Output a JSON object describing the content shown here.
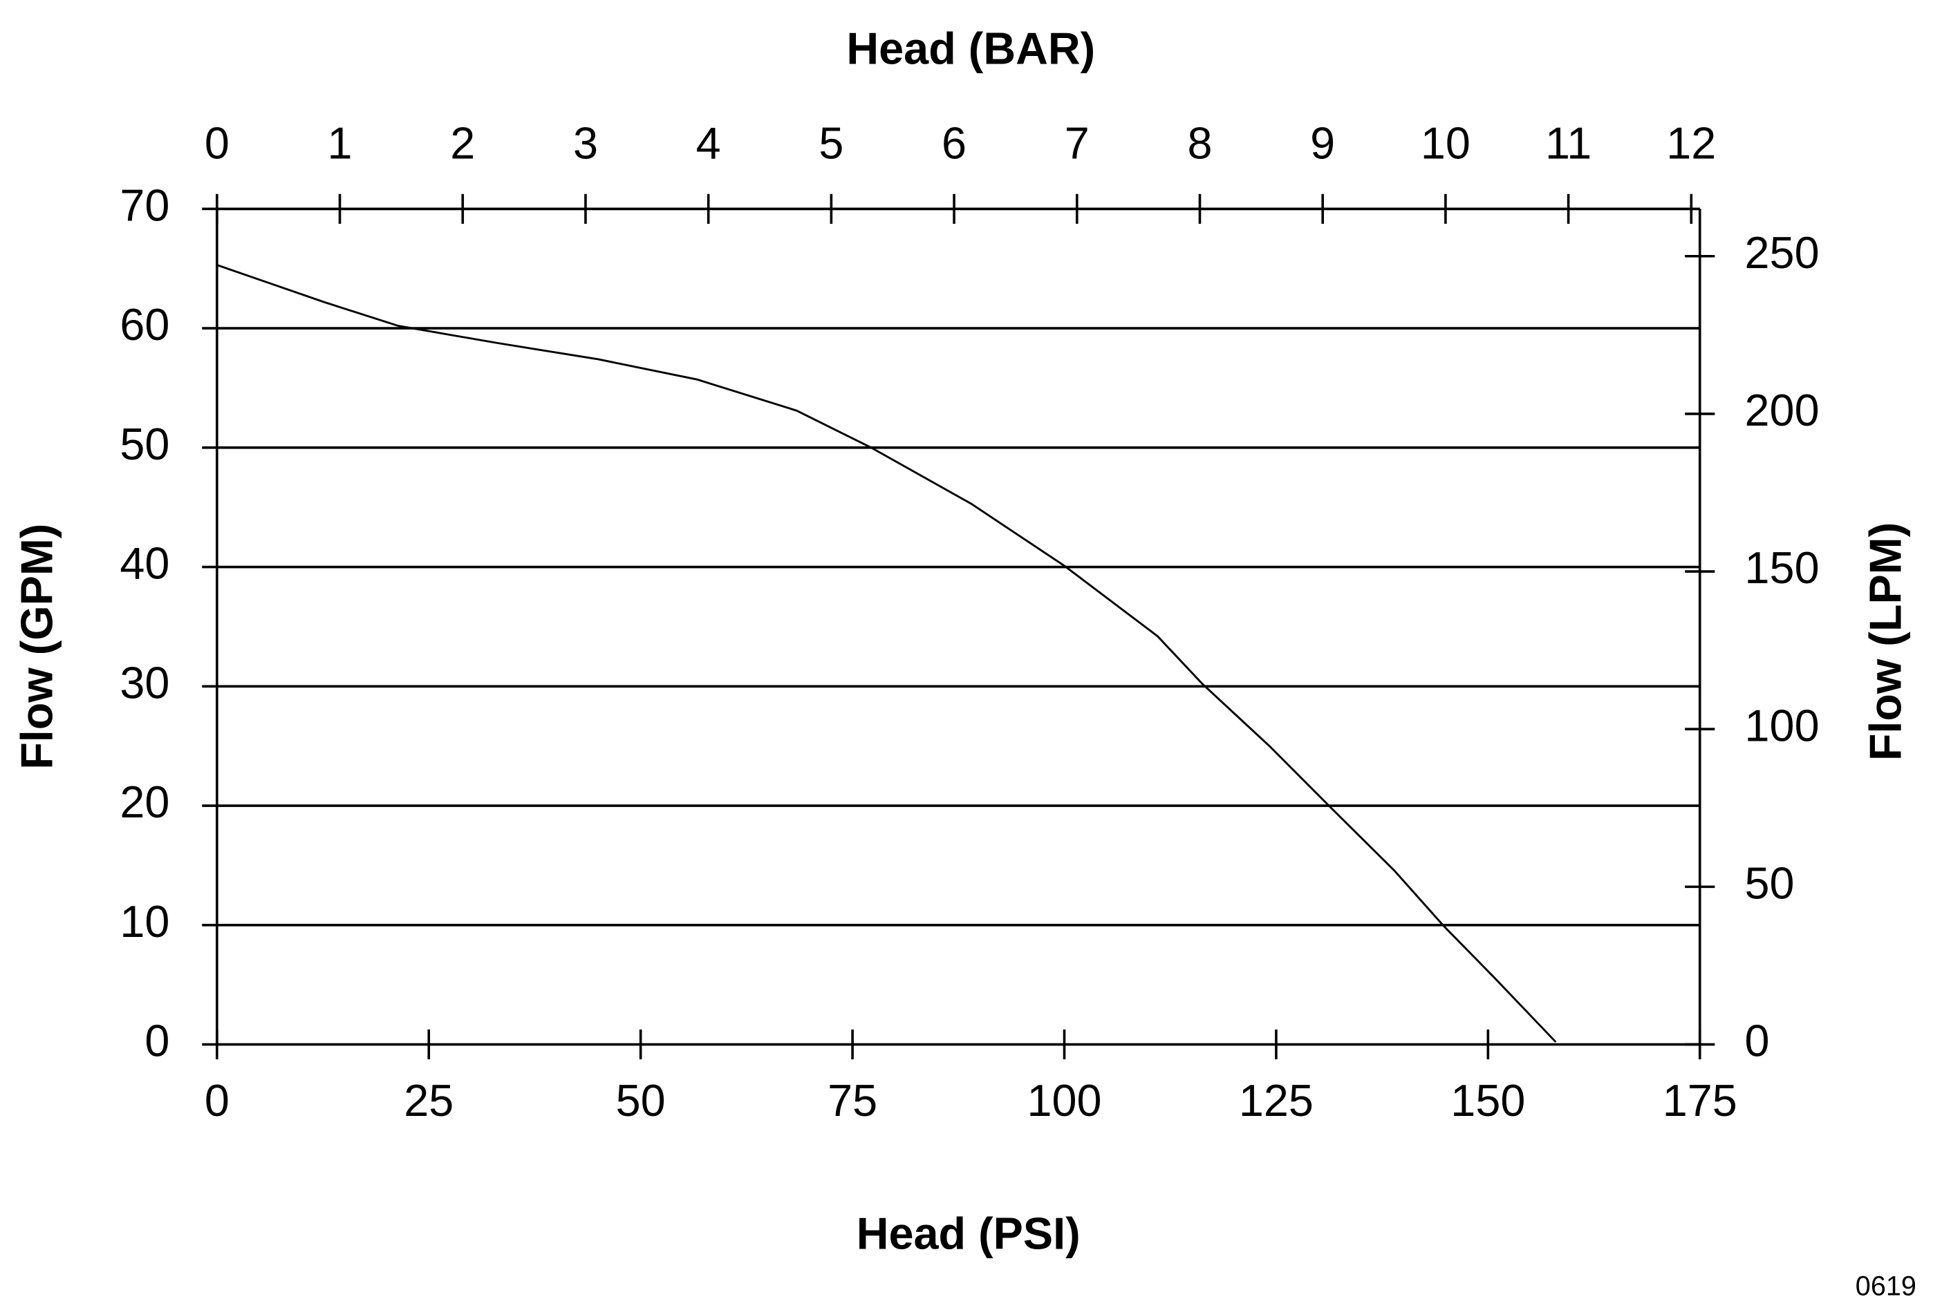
{
  "chart_data": {
    "type": "line",
    "title": "Head (BAR)",
    "x_label": "Head (PSI)",
    "y_label": "Flow (GPM)",
    "y2_label": "Flow (LPM)",
    "note": "0619",
    "x": [
      0,
      12.6,
      21.4,
      33.2,
      45,
      56.7,
      68.4,
      77.2,
      89,
      100,
      111,
      116.3,
      124.2,
      131.5,
      138.9,
      144.8,
      150.6,
      158
    ],
    "series": [
      {
        "name": "Flow",
        "color": "#000000",
        "values": [
          65.3,
          62.2,
          60.2,
          58.75,
          57.4,
          55.7,
          53.1,
          50,
          45.3,
          40.1,
          34.2,
          30.2,
          25,
          19.8,
          14.6,
          9.9,
          5.7,
          0.2
        ]
      }
    ],
    "xlim": [
      0,
      175
    ],
    "xticks": [
      0,
      25,
      50,
      75,
      100,
      125,
      150,
      175
    ],
    "x2lim": [
      0,
      12.07
    ],
    "x2ticks": [
      0,
      1,
      2,
      3,
      4,
      5,
      6,
      7,
      8,
      9,
      10,
      11,
      12
    ],
    "ylim": [
      0,
      70
    ],
    "yticks": [
      0,
      10,
      20,
      30,
      40,
      50,
      60,
      70
    ],
    "y2lim": [
      0,
      265
    ],
    "y2ticks": [
      0,
      50,
      100,
      150,
      200,
      250
    ],
    "grid": true
  }
}
